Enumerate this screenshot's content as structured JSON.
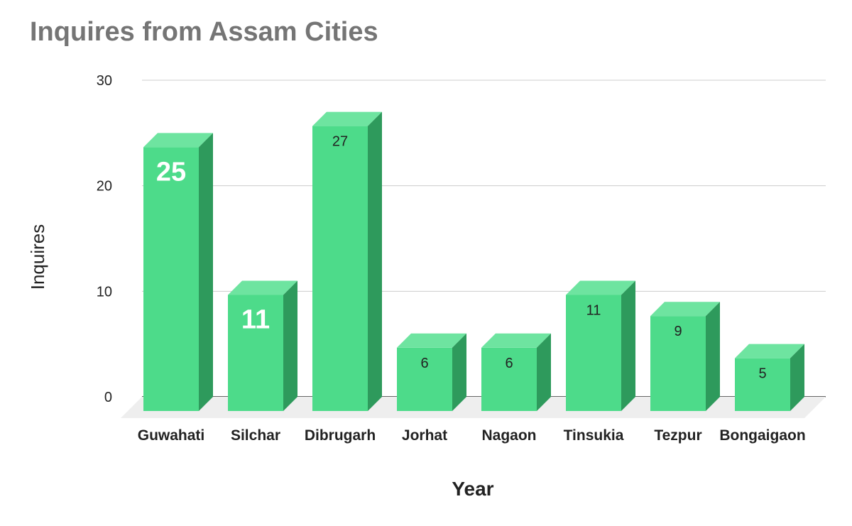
{
  "chart_data": {
    "type": "bar",
    "title": "Inquires from Assam Cities",
    "xlabel": "Year",
    "ylabel": "Inquires",
    "categories": [
      "Guwahati",
      "Silchar",
      "Dibrugarh",
      "Jorhat",
      "Nagaon",
      "Tinsukia",
      "Tezpur",
      "Bongaigaon"
    ],
    "values": [
      25,
      11,
      27,
      6,
      6,
      11,
      9,
      5
    ],
    "ylim": [
      0,
      30
    ],
    "yticks": [
      0,
      10,
      20,
      30
    ],
    "grid": true,
    "legend": "none",
    "style": "3d-column",
    "label_emphasis": [
      true,
      true,
      false,
      false,
      false,
      false,
      false,
      false
    ],
    "colors": {
      "bar_front": "#4ddb8a",
      "bar_top": "#6ee4a0",
      "bar_side": "#2e9a5c",
      "floor": "#eeeeee",
      "grid": "#cccccc",
      "title": "#757575",
      "label_emphasis": "#ffffff",
      "label_normal": "#222222"
    }
  }
}
